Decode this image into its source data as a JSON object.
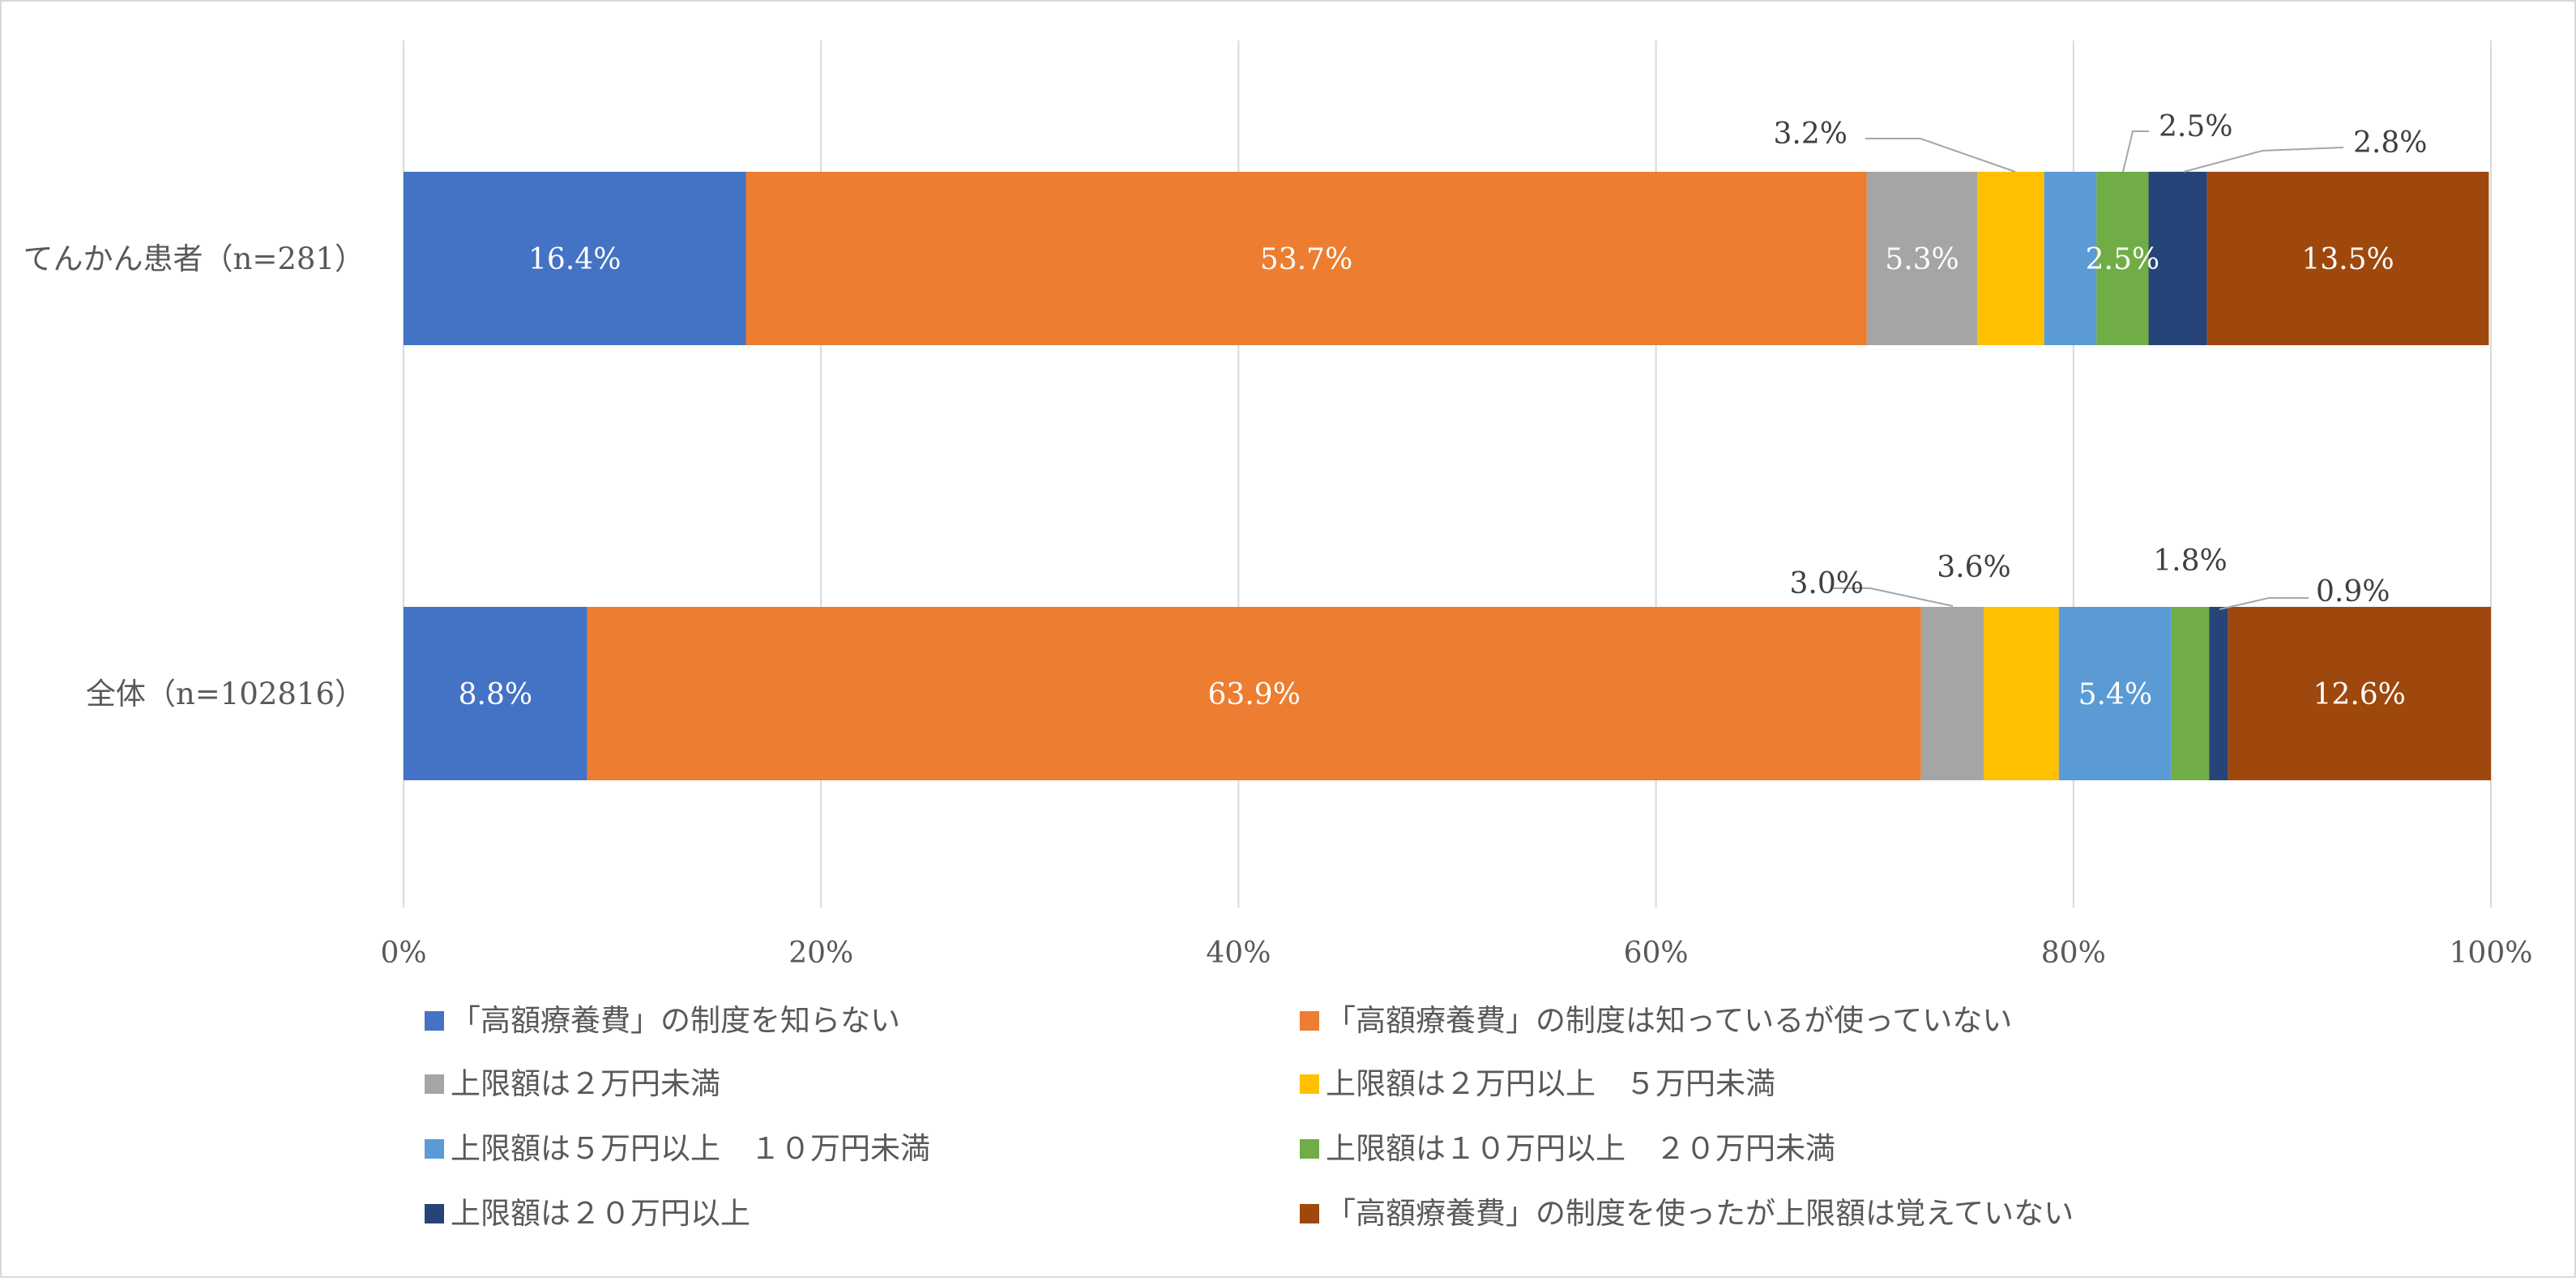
{
  "chart_data": {
    "type": "bar",
    "orientation": "horizontal",
    "stacked": "percent",
    "title": "",
    "xlabel": "",
    "ylabel": "",
    "xlim": [
      0,
      100
    ],
    "x_ticks": [
      "0%",
      "20%",
      "40%",
      "60%",
      "80%",
      "100%"
    ],
    "grid": true,
    "legend_position": "bottom",
    "categories": [
      "てんかん患者（n=281）",
      "全体（n=102816）"
    ],
    "series": [
      {
        "name": "「高額療養費」の制度を知らない",
        "color": "#4472C4",
        "values": [
          16.4,
          8.8
        ],
        "labels": [
          "16.4%",
          "8.8%"
        ]
      },
      {
        "name": "「高額療養費」の制度は知っているが使っていない",
        "color": "#ED7D31",
        "values": [
          53.7,
          63.9
        ],
        "labels": [
          "53.7%",
          "63.9%"
        ]
      },
      {
        "name": "上限額は２万円未満",
        "color": "#A5A5A5",
        "values": [
          5.3,
          3.0
        ],
        "labels": [
          "5.3%",
          "3.0%"
        ]
      },
      {
        "name": "上限額は２万円以上　５万円未満",
        "color": "#FFC000",
        "values": [
          3.2,
          3.6
        ],
        "labels": [
          "3.2%",
          "3.6%"
        ]
      },
      {
        "name": "上限額は５万円以上　１０万円未満",
        "color": "#5B9BD5",
        "values": [
          2.5,
          5.4
        ],
        "labels": [
          "2.5%",
          "5.4%"
        ]
      },
      {
        "name": "上限額は１０万円以上　２０万円未満",
        "color": "#70AD47",
        "values": [
          2.5,
          1.8
        ],
        "labels": [
          "2.5%",
          "1.8%"
        ]
      },
      {
        "name": "上限額は２０万円以上",
        "color": "#264478",
        "values": [
          2.8,
          0.9
        ],
        "labels": [
          "2.8%",
          "0.9%"
        ]
      },
      {
        "name": "「高額療養費」の制度を使ったが上限額は覚えていない",
        "color": "#9E480E",
        "values": [
          13.5,
          12.6
        ],
        "labels": [
          "13.5%",
          "12.6%"
        ]
      }
    ]
  }
}
